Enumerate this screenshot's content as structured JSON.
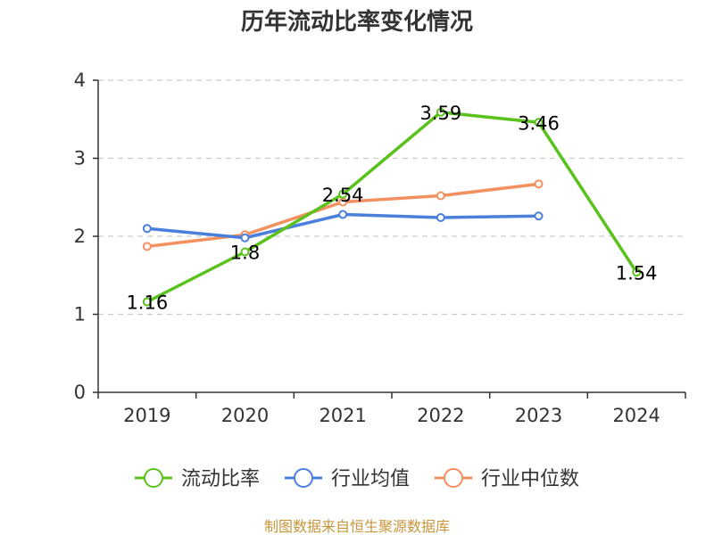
{
  "chart_data": {
    "type": "line",
    "title": "历年流动比率变化情况",
    "categories": [
      "2019",
      "2020",
      "2021",
      "2022",
      "2023",
      "2024"
    ],
    "ylim": [
      0,
      4
    ],
    "yticks": [
      0,
      1,
      2,
      3,
      4
    ],
    "grid": true,
    "legend_position": "bottom",
    "series": [
      {
        "name": "流动比率",
        "color": "#5ac21c",
        "values": [
          1.16,
          1.8,
          2.54,
          3.59,
          3.46,
          1.54
        ],
        "labels": [
          "1.16",
          "1.8",
          "2.54",
          "3.59",
          "3.46",
          "1.54"
        ]
      },
      {
        "name": "行业均值",
        "color": "#4a7fdc",
        "values": [
          2.1,
          1.98,
          2.28,
          2.24,
          2.26,
          null
        ]
      },
      {
        "name": "行业中位数",
        "color": "#f39060",
        "values": [
          1.87,
          2.02,
          2.44,
          2.52,
          2.67,
          null
        ]
      }
    ],
    "source": "制图数据来自恒生聚源数据库"
  }
}
